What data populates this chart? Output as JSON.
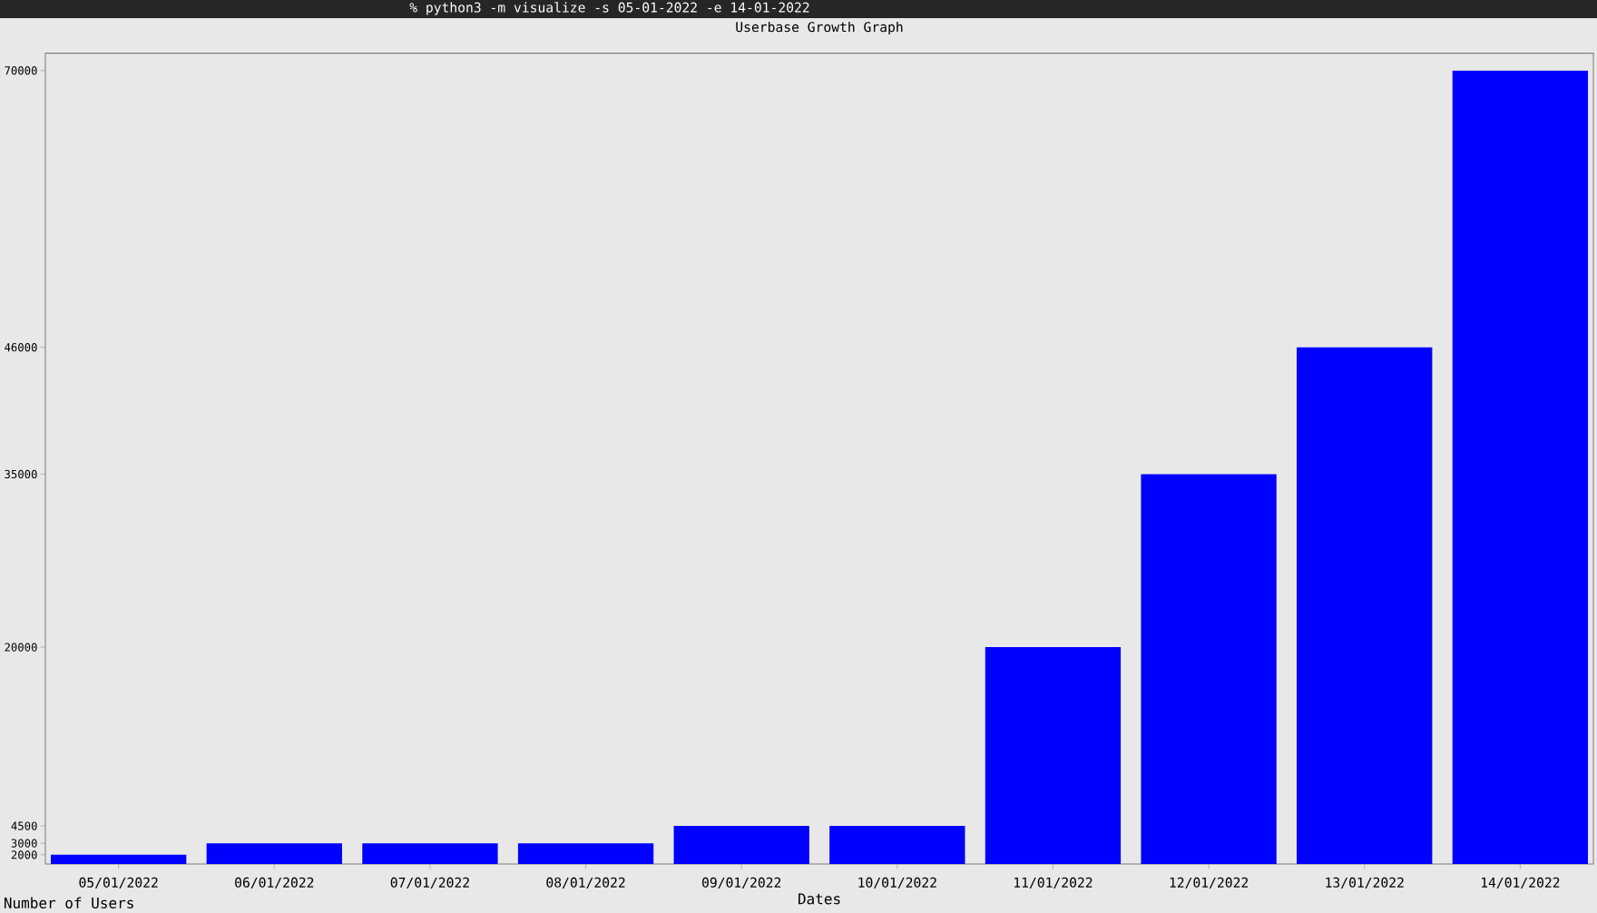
{
  "chart_data": {
    "type": "bar",
    "title": "Userbase Growth Graph",
    "xlabel": "Dates",
    "ylabel": "Number of Users",
    "annotations": [
      "% python3 -m visualize -s 05-01-2022 -e 14-01-2022"
    ],
    "categories": [
      "05/01/2022",
      "06/01/2022",
      "07/01/2022",
      "08/01/2022",
      "09/01/2022",
      "10/01/2022",
      "11/01/2022",
      "12/01/2022",
      "13/01/2022",
      "14/01/2022"
    ],
    "values": [
      2000,
      3000,
      3000,
      3000,
      4500,
      4500,
      20000,
      35000,
      46000,
      70000
    ],
    "color": "#0000ff",
    "ylim": [
      1200,
      71500
    ],
    "yticks": [
      2000,
      3000,
      4500,
      20000,
      35000,
      46000,
      70000
    ],
    "grid": false
  }
}
